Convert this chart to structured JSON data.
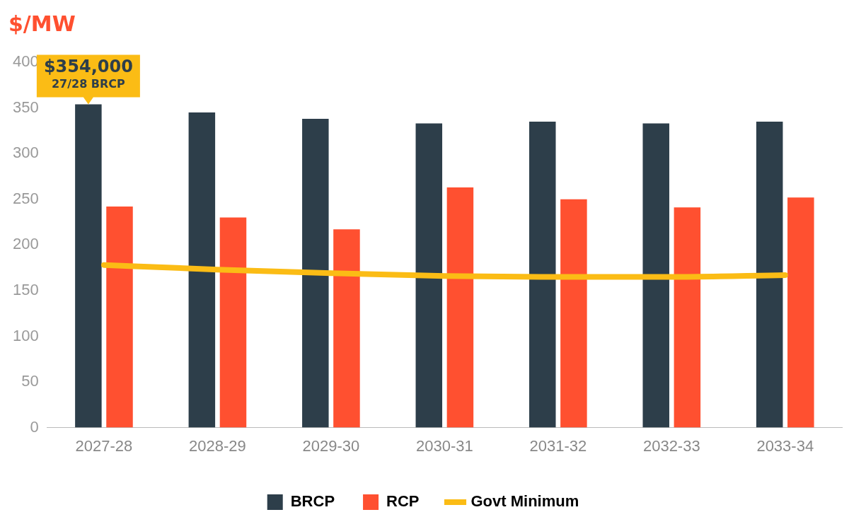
{
  "chart_data": {
    "type": "bar",
    "ylabel": "$/MW",
    "categories": [
      "2027-28",
      "2028-29",
      "2029-30",
      "2030-31",
      "2031-32",
      "2032-33",
      "2033-34"
    ],
    "series": [
      {
        "name": "BRCP",
        "color": "#2d3e4a",
        "values": [
          354,
          345,
          338,
          333,
          335,
          333,
          335
        ]
      },
      {
        "name": "RCP",
        "color": "#ff5030",
        "values": [
          242,
          230,
          217,
          263,
          250,
          241,
          252
        ]
      },
      {
        "name": "Govt Minimum",
        "type": "line",
        "color": "#fbbc15",
        "values": [
          178,
          173,
          169,
          166,
          165,
          165,
          167
        ]
      }
    ],
    "ylim": [
      0,
      400
    ],
    "yticks": [
      0,
      50,
      100,
      150,
      200,
      250,
      300,
      350,
      400
    ],
    "annotations": [
      {
        "text": "$354,000\n27/28 BRCP",
        "x": "2027-28",
        "y": 354
      }
    ],
    "legend": "bottom",
    "grid": false,
    "marker": "none"
  }
}
